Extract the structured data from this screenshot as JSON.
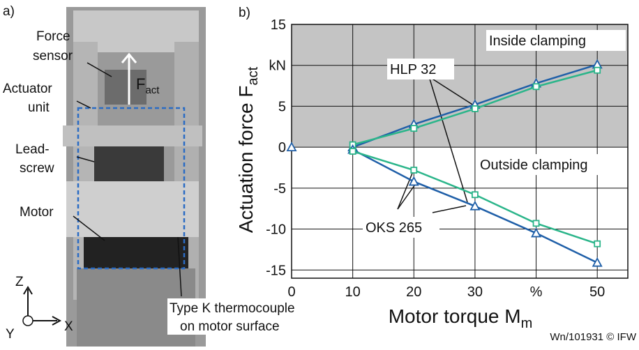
{
  "photo": {
    "panel": "a)",
    "labels": {
      "force": "Force",
      "sensor": "sensor",
      "f": "F",
      "f_sub": "act",
      "actuator": "Actuator",
      "unit": "unit",
      "lead": "Lead-",
      "screw": "screw",
      "motor": "Motor",
      "tc1": "Type K thermocouple",
      "tc2": "on motor surface",
      "z": "Z",
      "y": "Y",
      "x": "X"
    }
  },
  "chart_data": {
    "type": "line",
    "panel": "b)",
    "x_label": "Motor torque M",
    "x_label_sub": "m",
    "y_label": "Actuation force F",
    "y_label_sub": "act",
    "annotations": {
      "inside": "Inside clamping",
      "outside": "Outside clamping",
      "hlp": "HLP 32",
      "oks": "OKS 265"
    },
    "footer": "Wn/101931 © IFW",
    "xlim": [
      0,
      55
    ],
    "xticks": [
      0,
      10,
      20,
      30,
      {
        "value": 40,
        "label": "%"
      },
      50
    ],
    "ylim": [
      -16,
      15
    ],
    "yticks": [
      15,
      {
        "value": 10,
        "label": "kN"
      },
      5,
      0,
      -5,
      -10,
      -15
    ],
    "grid": true,
    "shade_above": 0,
    "series": [
      {
        "color": "#1f5fa8",
        "marker": "triangle",
        "x": [
          10,
          20,
          30,
          40,
          50
        ],
        "values": [
          0,
          2.8,
          5.2,
          7.8,
          10.1
        ]
      },
      {
        "color": "#2bb58a",
        "marker": "square",
        "x": [
          10,
          20,
          30,
          40,
          50
        ],
        "values": [
          0.3,
          2.3,
          4.7,
          7.4,
          9.4
        ]
      },
      {
        "color": "#1f5fa8",
        "marker": "triangle",
        "x": [
          10,
          20,
          30,
          40,
          50
        ],
        "values": [
          -0.3,
          -4.2,
          -7.2,
          -10.5,
          -14.1
        ]
      },
      {
        "color": "#2bb58a",
        "marker": "square",
        "x": [
          10,
          20,
          30,
          40,
          50
        ],
        "values": [
          -0.5,
          -2.8,
          -5.8,
          -9.3,
          -11.8
        ]
      },
      {
        "color": "#1f5fa8",
        "marker": "triangle",
        "x": [
          0
        ],
        "values": [
          0
        ]
      }
    ]
  }
}
